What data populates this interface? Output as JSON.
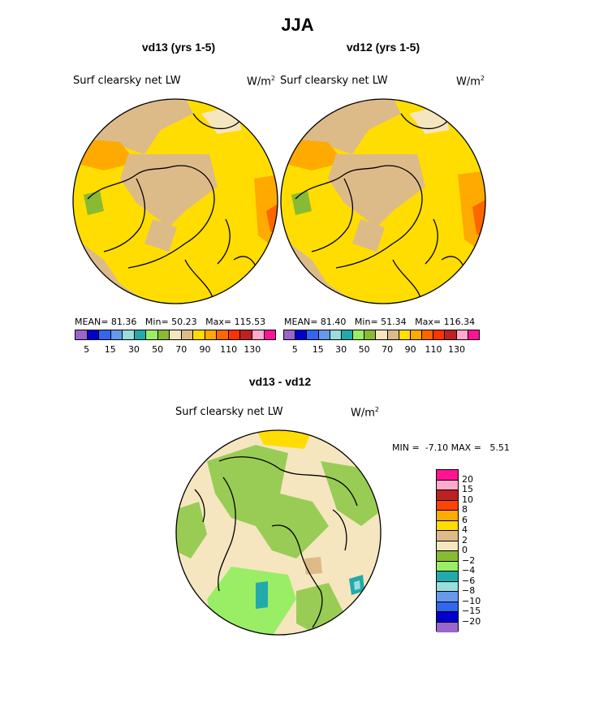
{
  "title": "JJA",
  "panels": [
    {
      "title": "vd13 (yrs 1-5)",
      "var_label": "Surf clearsky net LW",
      "units": "W/m",
      "units_sup": "2",
      "mean_label": "MEAN=",
      "mean": "81.36",
      "min_label": "Min=",
      "min": "50.23",
      "max_label": "Max=",
      "max": "115.53"
    },
    {
      "title": "vd12 (yrs 1-5)",
      "var_label": "Surf clearsky net LW",
      "units": "W/m",
      "units_sup": "2",
      "mean_label": "MEAN=",
      "mean": "81.40",
      "min_label": "Min=",
      "min": "51.34",
      "max_label": "Max=",
      "max": "116.34"
    }
  ],
  "abs_colorbar": {
    "colors": [
      "#9966cc",
      "#0000cc",
      "#3366ee",
      "#6699ee",
      "#99dddd",
      "#22aaaa",
      "#99ee66",
      "#88bb33",
      "#f5e6c0",
      "#ddbb88",
      "#ffdd00",
      "#ffaa00",
      "#ff6600",
      "#ff3300",
      "#bb2222",
      "#ffaacc",
      "#ff1493"
    ],
    "ticks": [
      "5",
      "15",
      "30",
      "50",
      "70",
      "90",
      "110",
      "130"
    ]
  },
  "diff": {
    "title": "vd13 - vd12",
    "var_label": "Surf clearsky net LW",
    "units": "W/m",
    "units_sup": "2",
    "min_label": "MIN =",
    "min": "-7.10",
    "max_label": "MAX =",
    "max": "5.51"
  },
  "diff_colorbar": {
    "colors": [
      "#ff1493",
      "#ffaacc",
      "#bb2222",
      "#ff4400",
      "#ffaa00",
      "#ffdd00",
      "#ddbb88",
      "#f5e6c0",
      "#88bb33",
      "#99ee66",
      "#22aaaa",
      "#99dddd",
      "#6699ee",
      "#3366ee",
      "#0000cc",
      "#9966cc"
    ],
    "ticks": [
      "20",
      "15",
      "10",
      "8",
      "6",
      "4",
      "2",
      "0",
      "−2",
      "−4",
      "−6",
      "−8",
      "−10",
      "−15",
      "−20"
    ]
  },
  "colors": {
    "ocean_yellow": "#ffdd00",
    "land_tan": "#ddbb88",
    "orange": "#ffaa00",
    "diff_beige": "#f5e6c0",
    "diff_green": "#99cc55"
  }
}
